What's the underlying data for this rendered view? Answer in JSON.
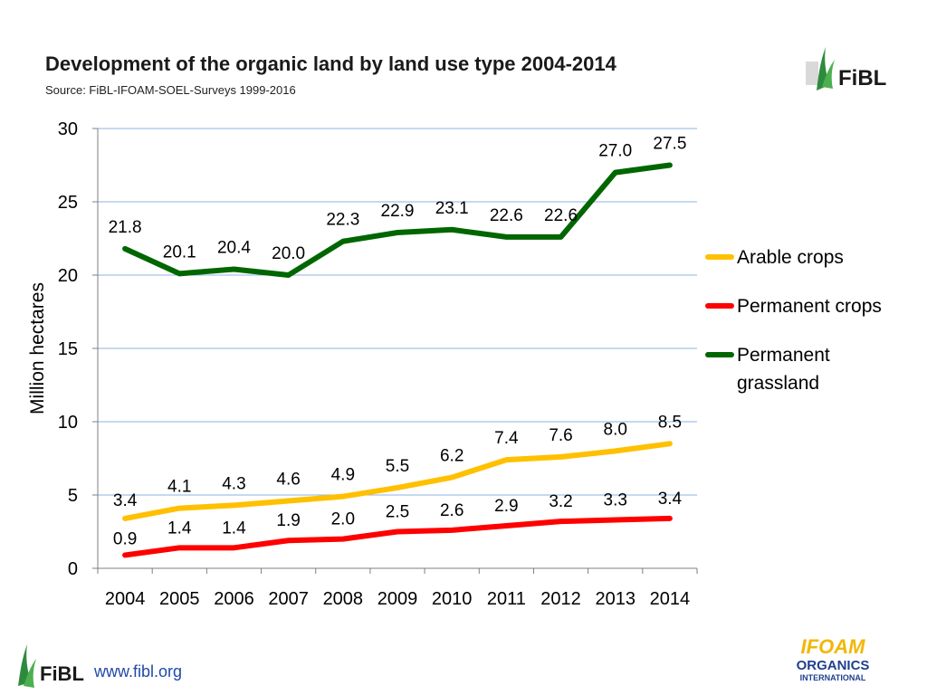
{
  "header": {
    "title": "Development of the organic land by land use type 2004-2014",
    "subtitle": "Source: FiBL-IFOAM-SOEL-Surveys 1999-2016"
  },
  "logos": {
    "fibl_text": "FiBL",
    "ifoam_line1": "IFOAM",
    "ifoam_line2": "ORGANICS",
    "ifoam_line3": "INTERNATIONAL"
  },
  "footer": {
    "url": "www.fibl.org"
  },
  "colors": {
    "arable": "#ffc000",
    "permanent_crops": "#ff0000",
    "grassland": "#006600",
    "grid": "#8db3e2",
    "fibl_green": "#2e8b3e",
    "ifoam_blue": "#1f3f8f",
    "ifoam_yellow": "#f2b705"
  },
  "chart_data": {
    "type": "line",
    "title": "Development of the organic land by land use type 2004-2014",
    "xlabel": "",
    "ylabel": "Million hectares",
    "categories": [
      "2004",
      "2005",
      "2006",
      "2007",
      "2008",
      "2009",
      "2010",
      "2011",
      "2012",
      "2013",
      "2014"
    ],
    "ylim": [
      0,
      30
    ],
    "yticks": [
      "0",
      "5",
      "10",
      "15",
      "20",
      "25",
      "30"
    ],
    "grid": true,
    "legend_position": "right",
    "series": [
      {
        "name": "Arable crops",
        "color": "#ffc000",
        "values": [
          3.4,
          4.1,
          4.3,
          4.6,
          4.9,
          5.5,
          6.2,
          7.4,
          7.6,
          8.0,
          8.5
        ],
        "labels": [
          "3.4",
          "4.1",
          "4.3",
          "4.6",
          "4.9",
          "5.5",
          "6.2",
          "7.4",
          "7.6",
          "8.0",
          "8.5"
        ]
      },
      {
        "name": "Permanent crops",
        "color": "#ff0000",
        "values": [
          0.9,
          1.4,
          1.4,
          1.9,
          2.0,
          2.5,
          2.6,
          2.9,
          3.2,
          3.3,
          3.4
        ],
        "labels": [
          "0.9",
          "1.4",
          "1.4",
          "1.9",
          "2.0",
          "2.5",
          "2.6",
          "2.9",
          "3.2",
          "3.3",
          "3.4"
        ]
      },
      {
        "name": "Permanent grassland",
        "legend_lines": [
          "Permanent",
          "grassland"
        ],
        "color": "#006600",
        "values": [
          21.8,
          20.1,
          20.4,
          20.0,
          22.3,
          22.9,
          23.1,
          22.6,
          22.6,
          27.0,
          27.5
        ],
        "labels": [
          "21.8",
          "20.1",
          "20.4",
          "20.0",
          "22.3",
          "22.9",
          "23.1",
          "22.6",
          "22.6",
          "27.0",
          "27.5"
        ]
      }
    ]
  }
}
